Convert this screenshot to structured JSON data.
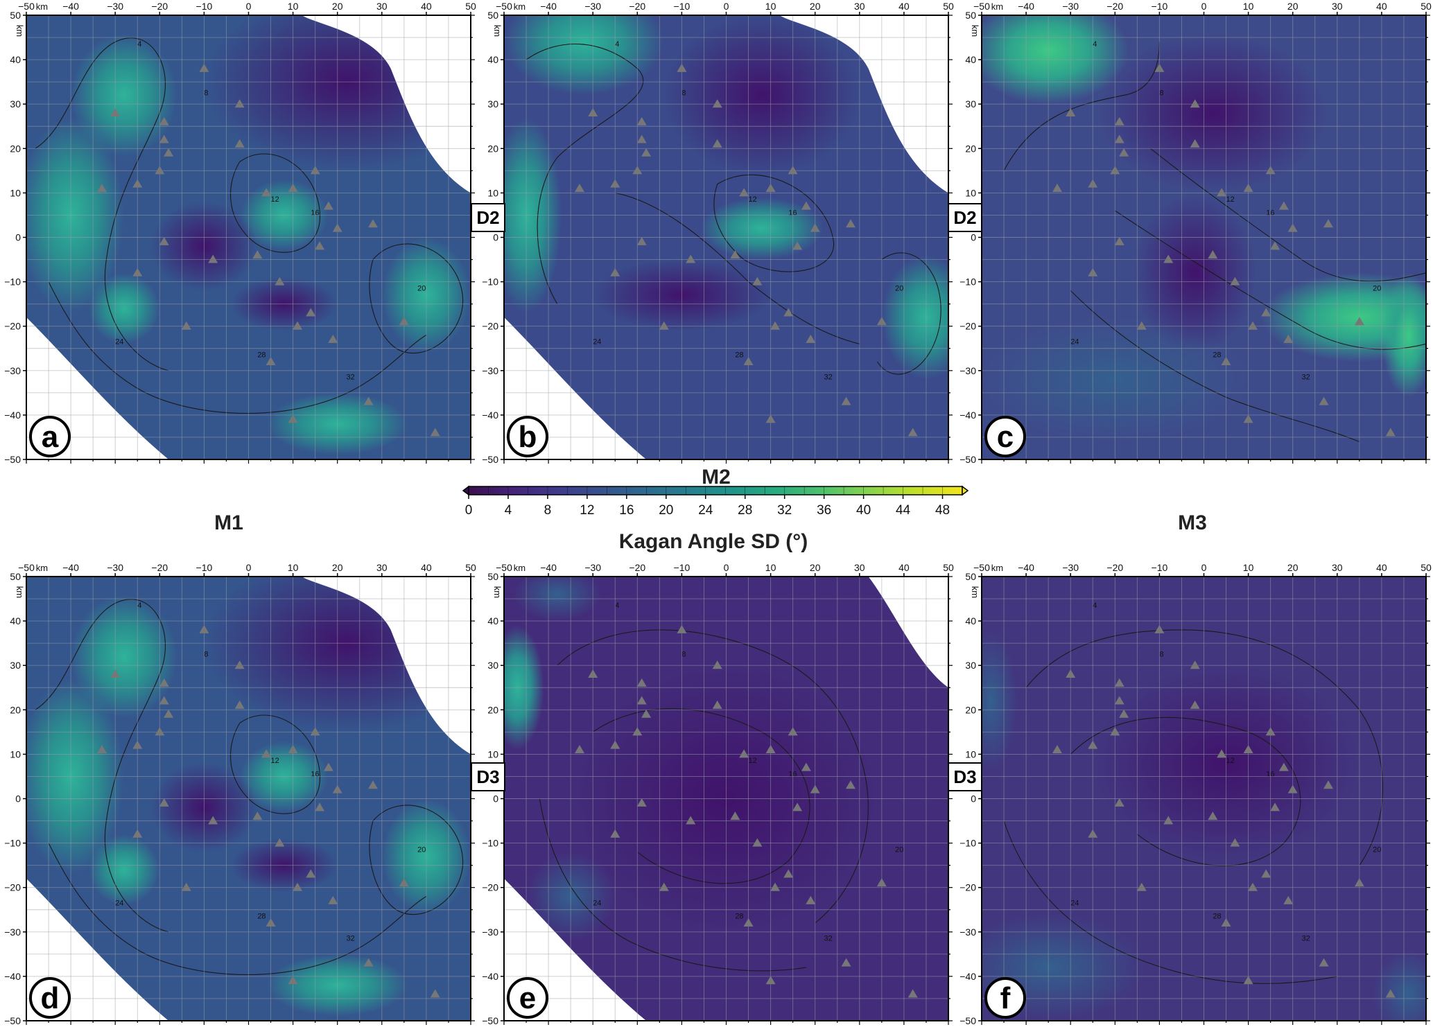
{
  "figure": {
    "model_labels": {
      "top_center": "M2",
      "left": "M1",
      "right": "M3"
    },
    "side_tags": {
      "row1": "D2",
      "row2": "D3"
    },
    "axis": {
      "x_ticks": [
        "−50",
        "−40",
        "−30",
        "−20",
        "−10",
        "0",
        "10",
        "20",
        "30",
        "40",
        "50"
      ],
      "y_ticks": [
        "50",
        "40",
        "30",
        "20",
        "10",
        "0",
        "−10",
        "−20",
        "−30",
        "−40",
        "−50"
      ],
      "unit": "km"
    },
    "colorbar": {
      "title": "Kagan Angle SD (°)",
      "ticks": [
        "0",
        "4",
        "8",
        "12",
        "16",
        "20",
        "24",
        "28",
        "32",
        "36",
        "40",
        "44",
        "48"
      ],
      "range": [
        0,
        50
      ],
      "colors": [
        "#3b0f4f",
        "#45237a",
        "#3f3a8c",
        "#36528d",
        "#2d6a8e",
        "#25808e",
        "#1e9689",
        "#29ad7e",
        "#4fc26b",
        "#86d44d",
        "#c0df29",
        "#f2e51c"
      ]
    },
    "panels": [
      {
        "id": "a",
        "letter": "a",
        "row": 1,
        "col": 1
      },
      {
        "id": "b",
        "letter": "b",
        "row": 1,
        "col": 2
      },
      {
        "id": "c",
        "letter": "c",
        "row": 1,
        "col": 3
      },
      {
        "id": "d",
        "letter": "d",
        "row": 2,
        "col": 1
      },
      {
        "id": "e",
        "letter": "e",
        "row": 2,
        "col": 2
      },
      {
        "id": "f",
        "letter": "f",
        "row": 2,
        "col": 3
      }
    ],
    "contour_labels": [
      "4",
      "8",
      "12",
      "16",
      "20",
      "24",
      "28",
      "32"
    ]
  }
}
